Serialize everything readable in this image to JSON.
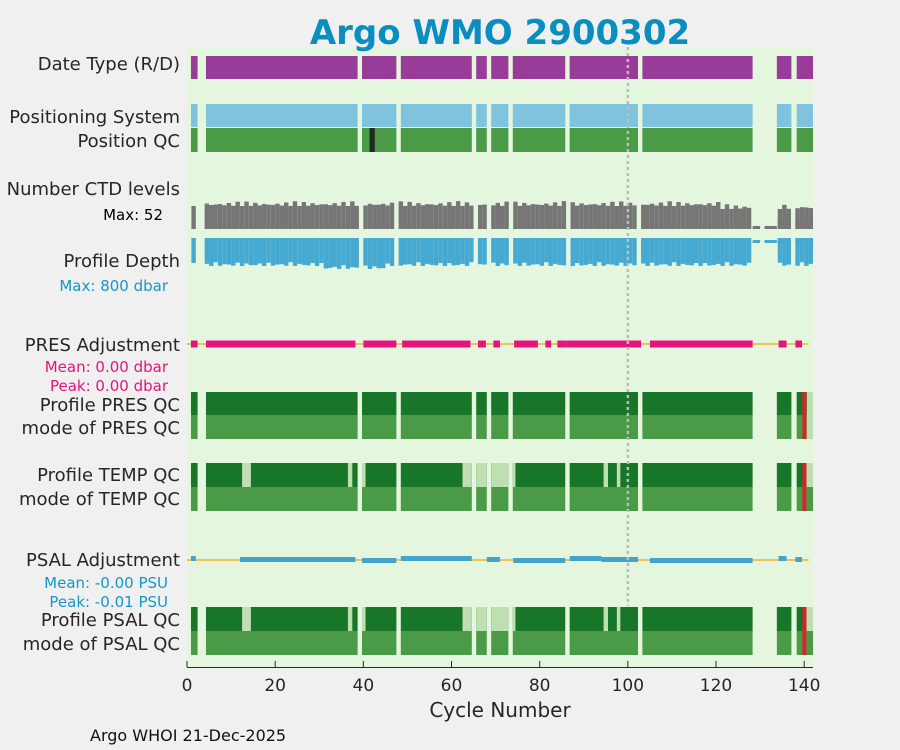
{
  "chart_data": {
    "type": "bar",
    "title": "Argo WMO 2900302",
    "xlabel": "Cycle Number",
    "xlim": [
      0,
      142
    ],
    "x_ticks": [
      0,
      20,
      40,
      60,
      80,
      100,
      120,
      140
    ],
    "x_tick_labels": [
      "0",
      "20",
      "40",
      "60",
      "80",
      "100",
      "120",
      "140"
    ],
    "reference_cycle": 100,
    "footer": "Argo WHOI 21-Dec-2025",
    "row_labels": {
      "date_type": "Date Type (R/D)",
      "positioning": "Positioning System",
      "position_qc": "Position QC",
      "ctd_levels": "Number CTD levels",
      "profile_depth": "Profile Depth",
      "pres_adj": "PRES Adjustment",
      "pres_qc": "Profile PRES QC",
      "pres_mode": "mode of PRES QC",
      "temp_qc": "Profile TEMP QC",
      "temp_mode": "mode of TEMP QC",
      "psal_adj": "PSAL Adjustment",
      "psal_qc": "Profile PSAL QC",
      "psal_mode": "mode of PSAL QC"
    },
    "notes": {
      "ctd_max": "Max: 52",
      "depth_max": "Max:  800 dbar",
      "pres_mean": "Mean: 0.00 dbar",
      "pres_peak": "Peak: 0.00 dbar",
      "psal_mean": "Mean: -0.00 PSU",
      "psal_peak": "Peak: -0.01 PSU"
    },
    "ctd_levels_max": 52,
    "profile_depth_max_dbar": 800,
    "pres_adjustment": {
      "mean_dbar": 0.0,
      "peak_dbar": 0.0
    },
    "psal_adjustment": {
      "mean_psu": -0.0,
      "peak_psu": -0.01
    },
    "segments": [
      [
        0.9,
        2.4
      ],
      [
        4.3,
        38.7
      ],
      [
        39.7,
        47.5
      ],
      [
        48.5,
        64.6
      ],
      [
        65.6,
        68.0
      ],
      [
        69.0,
        72.9
      ],
      [
        73.9,
        85.8
      ],
      [
        86.8,
        102.3
      ],
      [
        103.3,
        128.3
      ],
      [
        133.8,
        137.1
      ],
      [
        138.3,
        142.0
      ]
    ],
    "sparse_cycles": [
      [
        128.3,
        130
      ],
      [
        131,
        133.8
      ]
    ],
    "bad_position_cycles": [
      42
    ],
    "temp_psal_light_spans": [
      [
        12.5,
        14.5
      ],
      [
        36.5,
        37.5
      ],
      [
        39.7,
        40.5
      ],
      [
        62.5,
        64.6
      ],
      [
        65.6,
        68.0
      ],
      [
        69.0,
        72.9
      ],
      [
        73.9,
        74.5
      ],
      [
        94.5,
        95.5
      ],
      [
        97.5,
        98.3
      ],
      [
        140.5,
        142.0
      ]
    ],
    "pres_adj_spans": [
      [
        0.9,
        2.4
      ],
      [
        4.3,
        38.2
      ],
      [
        40.0,
        47.5
      ],
      [
        48.8,
        64.3
      ],
      [
        66.0,
        67.8
      ],
      [
        69.5,
        71.0
      ],
      [
        74.2,
        79.6
      ],
      [
        81.3,
        82.6
      ],
      [
        84.0,
        86.0
      ],
      [
        86.0,
        103.0
      ],
      [
        105.0,
        128.3
      ],
      [
        134.2,
        136.0
      ],
      [
        138.0,
        139.5
      ]
    ],
    "psal_adj_spans": [
      [
        0.9,
        2.0
      ],
      [
        12.0,
        38.2
      ],
      [
        39.7,
        47.5
      ],
      [
        48.5,
        64.6
      ],
      [
        68.0,
        71.0
      ],
      [
        74.0,
        85.8
      ],
      [
        86.8,
        94.0
      ],
      [
        94.0,
        102.3
      ],
      [
        105.0,
        128.3
      ],
      [
        134.2,
        136.0
      ],
      [
        138.0,
        139.5
      ]
    ],
    "red_qc_cycle": 140,
    "colors": {
      "plot_bg": "#e5f6df",
      "date_type": "#993c99",
      "positioning": "#7fc3de",
      "qc_good": "#4a9a48",
      "qc_dark": "#177628",
      "qc_light": "#bedfb1",
      "qc_bad": "#e0202b",
      "bad_position": "#1f2a1f",
      "ctd": "#767676",
      "depth": "#45a9d2",
      "pres_adj": "#e5137d",
      "psal_adj": "#42a3cb",
      "zero_line": "#ecb32c",
      "ref_line": "#bcbcbc",
      "title": "#0a8dbf"
    }
  }
}
